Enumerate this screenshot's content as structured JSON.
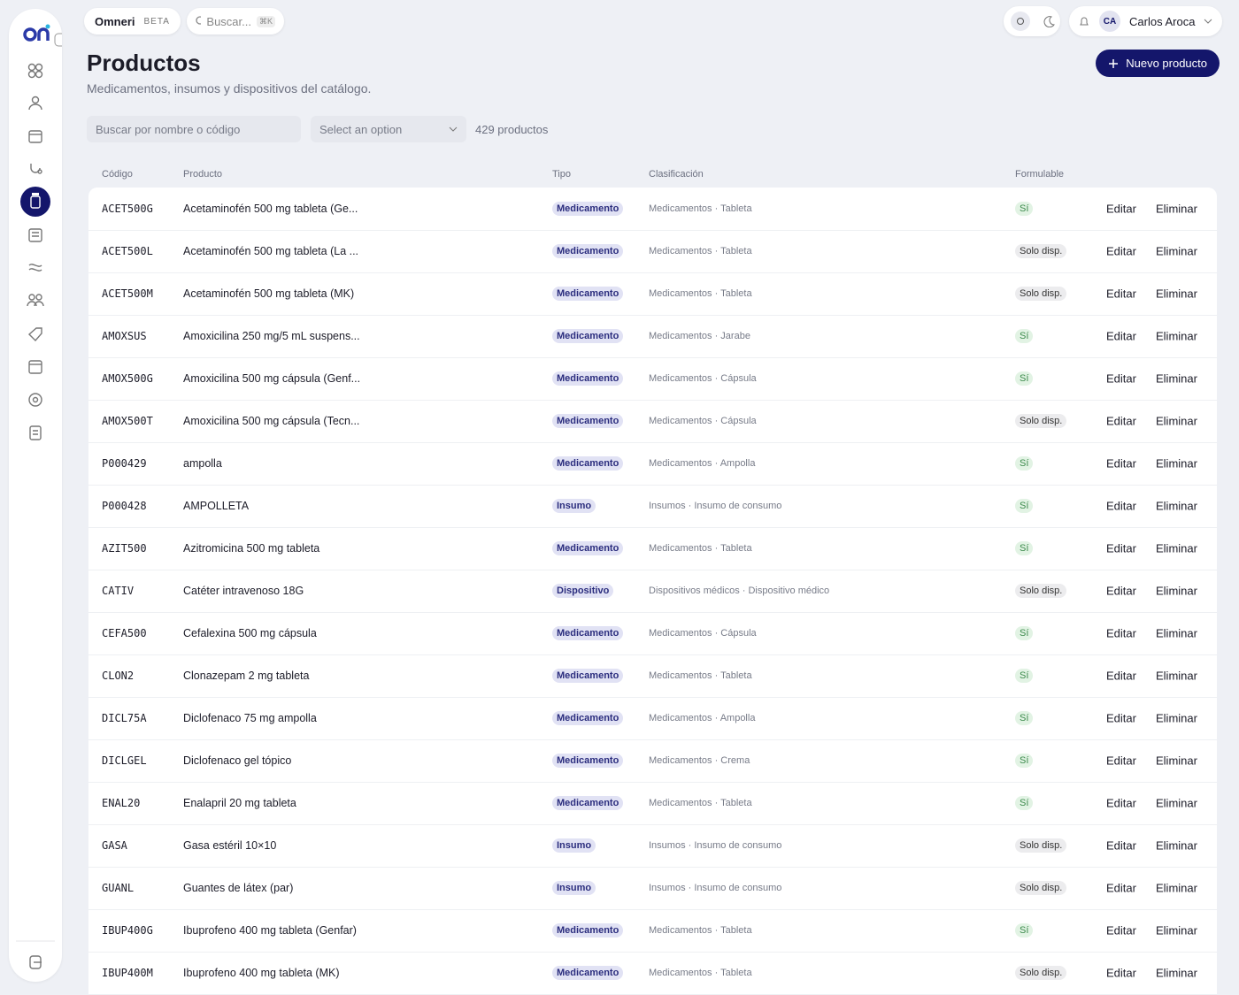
{
  "topbar": {
    "app_name": "Omneri",
    "badge": "BETA",
    "search_placeholder": "Buscar...",
    "shortcut": "⌘K",
    "user_initials": "CA",
    "user_name": "Carlos Aroca"
  },
  "header": {
    "title": "Productos",
    "subtitle": "Medicamentos, insumos y dispositivos del catálogo.",
    "new_button": "Nuevo producto"
  },
  "filters": {
    "search_placeholder": "Buscar por nombre o código",
    "select_placeholder": "Select an option",
    "count": "429 productos"
  },
  "table": {
    "columns": [
      "Código",
      "Producto",
      "Tipo",
      "Clasificación",
      "Formulable"
    ],
    "actions": [
      "Editar",
      "Eliminar"
    ],
    "rows": [
      {
        "code": "ACET500G",
        "product": "Acetaminofén 500 mg tableta (Ge...",
        "type": "Medicamento",
        "classification": "Medicamentos · Tableta",
        "formulable": "Sí"
      },
      {
        "code": "ACET500L",
        "product": "Acetaminofén 500 mg tableta (La ...",
        "type": "Medicamento",
        "classification": "Medicamentos · Tableta",
        "formulable": "Solo disp."
      },
      {
        "code": "ACET500M",
        "product": "Acetaminofén 500 mg tableta (MK)",
        "type": "Medicamento",
        "classification": "Medicamentos · Tableta",
        "formulable": "Solo disp."
      },
      {
        "code": "AMOXSUS",
        "product": "Amoxicilina 250 mg/5 mL suspens...",
        "type": "Medicamento",
        "classification": "Medicamentos · Jarabe",
        "formulable": "Sí"
      },
      {
        "code": "AMOX500G",
        "product": "Amoxicilina 500 mg cápsula (Genf...",
        "type": "Medicamento",
        "classification": "Medicamentos · Cápsula",
        "formulable": "Sí"
      },
      {
        "code": "AMOX500T",
        "product": "Amoxicilina 500 mg cápsula (Tecn...",
        "type": "Medicamento",
        "classification": "Medicamentos · Cápsula",
        "formulable": "Solo disp."
      },
      {
        "code": "P000429",
        "product": "ampolla",
        "type": "Medicamento",
        "classification": "Medicamentos · Ampolla",
        "formulable": "Sí"
      },
      {
        "code": "P000428",
        "product": "AMPOLLETA",
        "type": "Insumo",
        "classification": "Insumos · Insumo de consumo",
        "formulable": "Sí"
      },
      {
        "code": "AZIT500",
        "product": "Azitromicina 500 mg tableta",
        "type": "Medicamento",
        "classification": "Medicamentos · Tableta",
        "formulable": "Sí"
      },
      {
        "code": "CATIV",
        "product": "Catéter intravenoso 18G",
        "type": "Dispositivo",
        "classification": "Dispositivos médicos · Dispositivo médico",
        "formulable": "Solo disp."
      },
      {
        "code": "CEFA500",
        "product": "Cefalexina 500 mg cápsula",
        "type": "Medicamento",
        "classification": "Medicamentos · Cápsula",
        "formulable": "Sí"
      },
      {
        "code": "CLON2",
        "product": "Clonazepam 2 mg tableta",
        "type": "Medicamento",
        "classification": "Medicamentos · Tableta",
        "formulable": "Sí"
      },
      {
        "code": "DICL75A",
        "product": "Diclofenaco 75 mg ampolla",
        "type": "Medicamento",
        "classification": "Medicamentos · Ampolla",
        "formulable": "Sí"
      },
      {
        "code": "DICLGEL",
        "product": "Diclofenaco gel tópico",
        "type": "Medicamento",
        "classification": "Medicamentos · Crema",
        "formulable": "Sí"
      },
      {
        "code": "ENAL20",
        "product": "Enalapril 20 mg tableta",
        "type": "Medicamento",
        "classification": "Medicamentos · Tableta",
        "formulable": "Sí"
      },
      {
        "code": "GASA",
        "product": "Gasa estéril 10×10",
        "type": "Insumo",
        "classification": "Insumos · Insumo de consumo",
        "formulable": "Solo disp."
      },
      {
        "code": "GUANL",
        "product": "Guantes de látex (par)",
        "type": "Insumo",
        "classification": "Insumos · Insumo de consumo",
        "formulable": "Solo disp."
      },
      {
        "code": "IBUP400G",
        "product": "Ibuprofeno 400 mg tableta (Genfar)",
        "type": "Medicamento",
        "classification": "Medicamentos · Tableta",
        "formulable": "Sí"
      },
      {
        "code": "IBUP400M",
        "product": "Ibuprofeno 400 mg tableta (MK)",
        "type": "Medicamento",
        "classification": "Medicamentos · Tableta",
        "formulable": "Solo disp."
      }
    ]
  }
}
